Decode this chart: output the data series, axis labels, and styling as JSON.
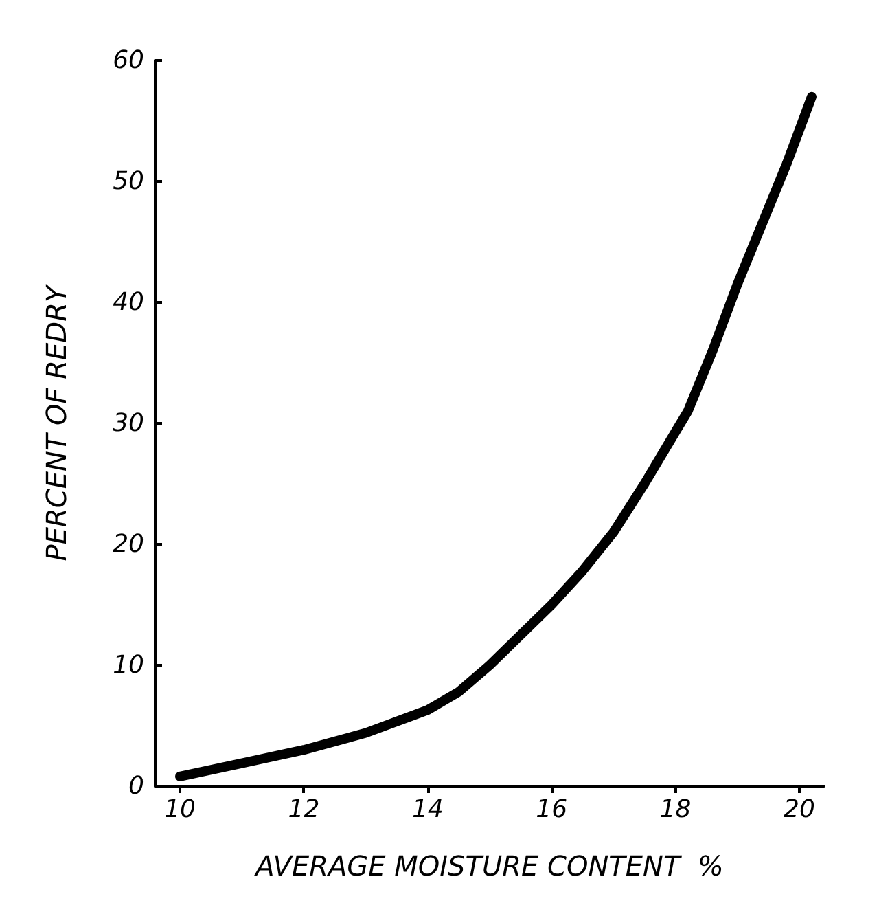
{
  "chart_data": {
    "type": "line",
    "xlabel": "AVERAGE MOISTURE CONTENT  %",
    "ylabel": "PERCENT OF REDRY",
    "x": [
      10,
      11,
      12,
      13,
      14,
      14.5,
      15,
      15.5,
      16,
      16.5,
      17,
      17.5,
      18,
      18.2,
      18.6,
      19,
      19.4,
      19.8,
      20.2
    ],
    "series": [
      {
        "color": "#000000",
        "values": [
          0.8,
          1.9,
          3,
          4.4,
          6.3,
          7.8,
          10,
          12.5,
          15,
          17.8,
          21,
          25,
          29.3,
          31,
          36,
          41.5,
          46.5,
          51.5,
          57
        ]
      }
    ],
    "xlim": [
      9.6,
      20.4
    ],
    "xticks": [
      10,
      12,
      14,
      16,
      18,
      20
    ],
    "ylim": [
      0,
      60
    ],
    "yticks": [
      0,
      10,
      20,
      30,
      40,
      50,
      60
    ],
    "marker": "none",
    "line_style": "solid"
  }
}
